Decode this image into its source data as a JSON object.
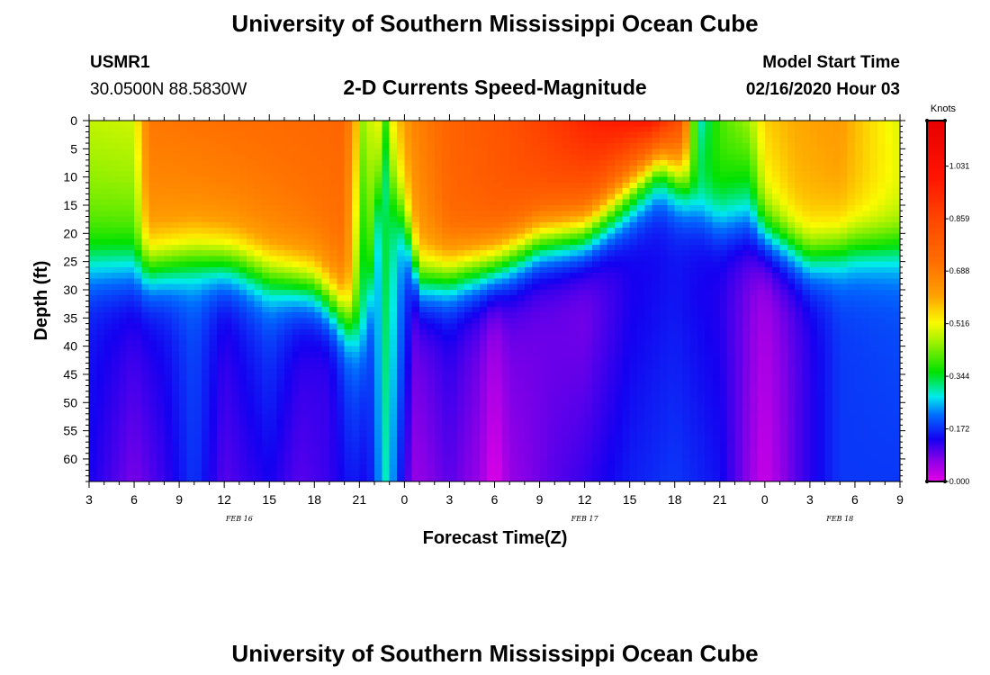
{
  "page": {
    "title_top": "University of Southern Mississippi Ocean Cube",
    "title_bottom": "University of Southern Mississippi Ocean Cube",
    "station_id": "USMR1",
    "station_coords": "30.0500N 88.5830W",
    "plot_title": "2-D Currents Speed-Magnitude",
    "model_start_label": "Model Start Time",
    "model_start_value": "02/16/2020 Hour 03"
  },
  "chart_data": {
    "type": "heatmap",
    "title": "2-D Currents Speed-Magnitude",
    "xlabel": "Forecast Time(Z)",
    "ylabel": "Depth (ft)",
    "x_tick_labels": [
      "3",
      "6",
      "9",
      "12",
      "15",
      "18",
      "21",
      "0",
      "3",
      "6",
      "9",
      "12",
      "15",
      "18",
      "21",
      "0",
      "3",
      "6",
      "9"
    ],
    "x_range_hours": [
      0,
      54
    ],
    "y_ticks": [
      0,
      5,
      10,
      15,
      20,
      25,
      30,
      35,
      40,
      45,
      50,
      55,
      60
    ],
    "ylim": [
      0,
      64
    ],
    "date_labels": [
      {
        "label": "FEB 16",
        "hour": 10
      },
      {
        "label": "FEB 17",
        "hour": 33
      },
      {
        "label": "FEB 18",
        "hour": 50
      }
    ],
    "colorbar": {
      "unit": "Knots",
      "ticks": [
        "1.031",
        "0.859",
        "0.688",
        "0.516",
        "0.344",
        "0.172",
        "0.000"
      ],
      "tick_values": [
        1.031,
        0.859,
        0.688,
        0.516,
        0.344,
        0.172,
        0.0
      ],
      "range": [
        0,
        1.18
      ]
    },
    "surface_layer": [
      [
        0,
        0.48,
        0.4
      ],
      [
        3,
        0.49,
        0.4
      ],
      [
        4,
        0.7,
        0.62
      ],
      [
        12,
        0.73,
        0.66
      ],
      [
        17,
        0.75,
        0.7
      ],
      [
        17.7,
        0.6,
        0.45
      ],
      [
        18.2,
        0.45,
        0.3
      ],
      [
        19.2,
        0.52,
        0.42
      ],
      [
        19.8,
        0.38,
        0.28
      ],
      [
        20.3,
        0.55,
        0.44
      ],
      [
        21.5,
        0.66,
        0.6
      ],
      [
        24,
        0.76,
        0.74
      ],
      [
        28,
        0.82,
        0.8
      ],
      [
        31,
        0.9,
        0.8
      ],
      [
        34,
        0.98,
        0.78
      ],
      [
        37.5,
        1.02,
        0.62
      ],
      [
        39.5,
        0.82,
        0.55
      ],
      [
        40.5,
        0.28,
        0.4
      ],
      [
        42,
        0.4,
        0.38
      ],
      [
        44,
        0.46,
        0.3
      ],
      [
        45,
        0.56,
        0.5
      ],
      [
        47,
        0.6,
        0.58
      ],
      [
        50,
        0.62,
        0.6
      ],
      [
        52,
        0.55,
        0.56
      ],
      [
        54,
        0.5,
        0.52
      ]
    ],
    "thermocline_depth": [
      [
        0,
        26
      ],
      [
        4,
        26
      ],
      [
        7,
        24
      ],
      [
        10,
        25
      ],
      [
        12,
        27
      ],
      [
        15,
        29
      ],
      [
        17,
        34
      ],
      [
        18.5,
        40
      ],
      [
        19.2,
        16
      ],
      [
        19.8,
        14
      ],
      [
        21,
        18
      ],
      [
        22,
        28
      ],
      [
        24,
        27
      ],
      [
        27,
        25
      ],
      [
        30,
        21
      ],
      [
        33,
        20
      ],
      [
        36,
        14
      ],
      [
        38,
        10
      ],
      [
        40,
        14
      ],
      [
        42,
        18
      ],
      [
        45,
        20
      ],
      [
        48,
        24
      ],
      [
        51,
        22
      ],
      [
        54,
        22
      ]
    ],
    "deep_layer": [
      [
        0,
        0.16,
        0.14
      ],
      [
        3,
        0.14,
        0.08
      ],
      [
        5,
        0.16,
        0.12
      ],
      [
        7,
        0.2,
        0.18
      ],
      [
        9,
        0.14,
        0.1
      ],
      [
        12,
        0.2,
        0.14
      ],
      [
        14,
        0.14,
        0.1
      ],
      [
        16,
        0.12,
        0.12
      ],
      [
        17.5,
        0.22,
        0.16
      ],
      [
        18.6,
        0.18,
        0.14
      ],
      [
        19.8,
        0.36,
        0.3
      ],
      [
        21,
        0.22,
        0.12
      ],
      [
        21.8,
        0.1,
        0.06
      ],
      [
        24,
        0.14,
        0.1
      ],
      [
        26,
        0.1,
        0.06
      ],
      [
        27,
        0.08,
        0.0
      ],
      [
        28,
        0.1,
        0.06
      ],
      [
        31,
        0.08,
        0.1
      ],
      [
        33,
        0.06,
        0.12
      ],
      [
        36,
        0.12,
        0.16
      ],
      [
        39,
        0.14,
        0.18
      ],
      [
        42,
        0.12,
        0.15
      ],
      [
        45,
        0.06,
        0.02
      ],
      [
        47,
        0.1,
        0.1
      ],
      [
        50,
        0.18,
        0.18
      ],
      [
        54,
        0.2,
        0.18
      ]
    ]
  }
}
